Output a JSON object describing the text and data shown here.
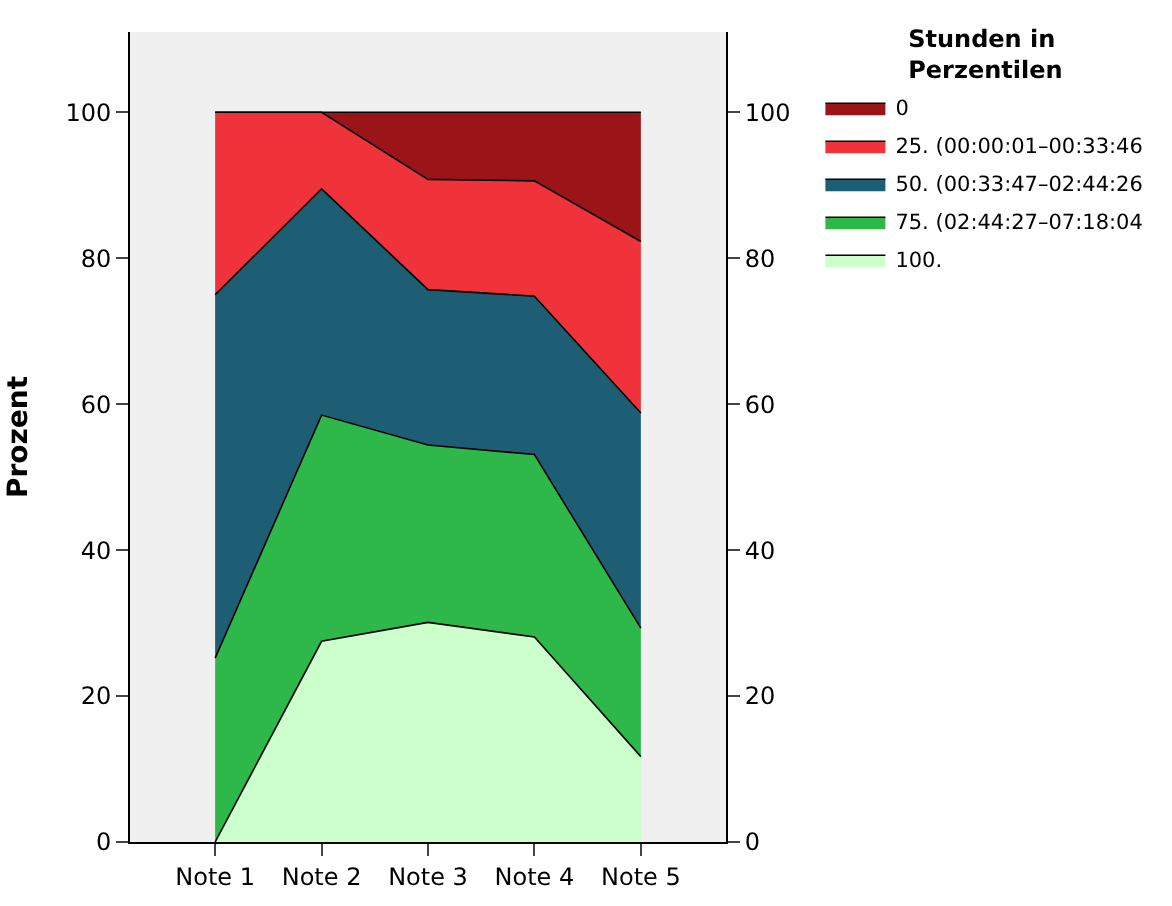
{
  "chart_data": {
    "type": "area",
    "stacked": true,
    "ylabel": "Prozent",
    "legend_title": "Stunden in Perzentilen",
    "legend": "top right",
    "grid": false,
    "categories": [
      "Note 1",
      "Note 2",
      "Note 3",
      "Note 4",
      "Note 5"
    ],
    "ylim": [
      0,
      111
    ],
    "yticks": [
      0,
      20,
      40,
      60,
      80,
      100
    ],
    "y2lim": [
      0,
      111
    ],
    "y2ticks": [
      0,
      20,
      40,
      60,
      80,
      100
    ],
    "series": [
      {
        "name": "100.",
        "color": "#ccffcc",
        "values": [
          0,
          27.5,
          30.1,
          28.1,
          11.7
        ]
      },
      {
        "name": "75. (02:44:27–07:18:04",
        "color": "#2eb84a",
        "values": [
          25.2,
          31.0,
          24.3,
          25.0,
          17.6
        ]
      },
      {
        "name": "50. (00:33:47–02:44:26",
        "color": "#1e5e75",
        "values": [
          49.8,
          31.0,
          21.3,
          21.7,
          29.5
        ]
      },
      {
        "name": "25. (00:00:01–00:33:46",
        "color": "#f0323a",
        "values": [
          25.0,
          10.5,
          15.1,
          15.8,
          23.5
        ]
      },
      {
        "name": "0",
        "color": "#9b1518",
        "values": [
          0,
          0,
          9.2,
          9.4,
          17.7
        ]
      }
    ]
  }
}
